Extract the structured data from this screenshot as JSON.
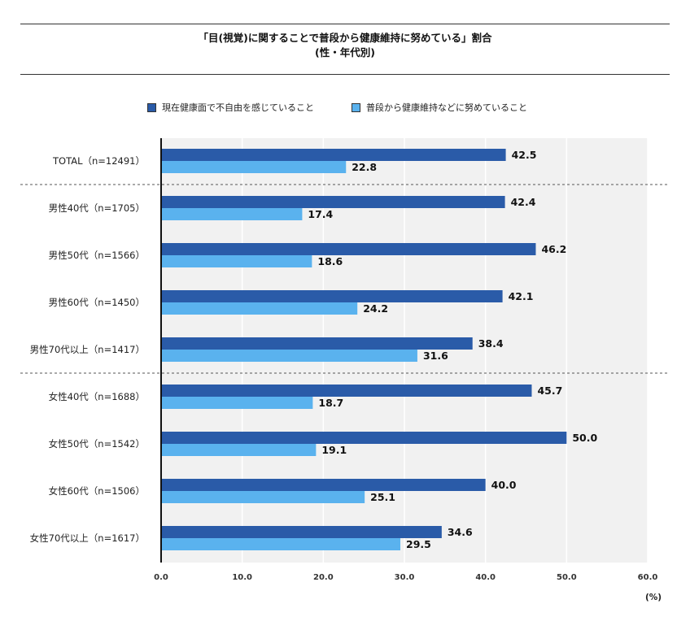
{
  "header": {
    "title_line1": "「目(視覚)に関することで普段から健康維持に努めている」割合",
    "title_line2": "(性・年代別)"
  },
  "legend": {
    "item1_label": "現在健康面で不自由を感じていること",
    "item2_label": "普段から健康維持などに努めていること"
  },
  "colors": {
    "series1": "#2a5ba8",
    "series2": "#5ab2ee",
    "plot_bg": "#f1f1f1",
    "grid": "#ffffff"
  },
  "chart_data": {
    "type": "bar",
    "orientation": "horizontal",
    "categories": [
      "TOTAL（n=12491）",
      "男性40代（n=1705）",
      "男性50代（n=1566）",
      "男性60代（n=1450）",
      "男性70代以上（n=1417）",
      "女性40代（n=1688）",
      "女性50代（n=1542）",
      "女性60代（n=1506）",
      "女性70代以上（n=1617）"
    ],
    "series": [
      {
        "name": "現在健康面で不自由を感じていること",
        "values": [
          42.5,
          42.4,
          46.2,
          42.1,
          38.4,
          45.7,
          50.0,
          40.0,
          34.6
        ]
      },
      {
        "name": "普段から健康維持などに努めていること",
        "values": [
          22.8,
          17.4,
          18.6,
          24.2,
          31.6,
          18.7,
          19.1,
          25.1,
          29.5
        ]
      }
    ],
    "xlim": [
      0,
      60
    ],
    "xticks": [
      "0.0",
      "10.0",
      "20.0",
      "30.0",
      "40.0",
      "50.0",
      "60.0"
    ],
    "xunit": "(%)",
    "group_separators_after": [
      0,
      4
    ],
    "grid": true,
    "legend_position": "top"
  }
}
